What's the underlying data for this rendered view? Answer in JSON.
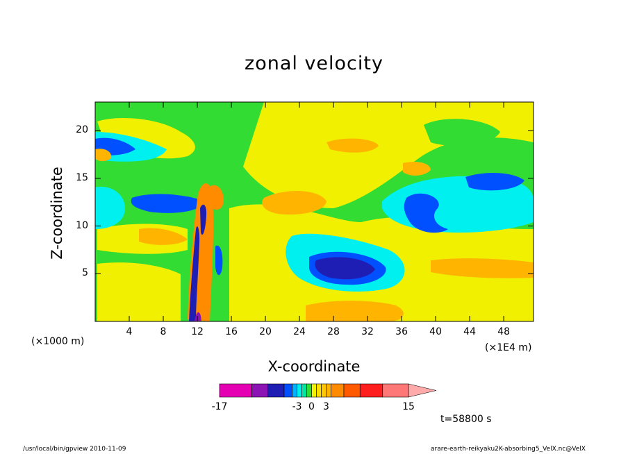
{
  "chart_data": {
    "type": "heatmap",
    "title": "zonal velocity",
    "xlabel": "X-coordinate",
    "ylabel": "Z-coordinate",
    "x_unit": "(×1E4 m)",
    "y_unit": "(×1000 m)",
    "xlim": [
      0,
      51.5
    ],
    "ylim": [
      0,
      23
    ],
    "x_ticks": [
      "4",
      "8",
      "12",
      "16",
      "20",
      "24",
      "28",
      "32",
      "36",
      "40",
      "44",
      "48"
    ],
    "y_ticks": [
      "5",
      "10",
      "15",
      "20"
    ],
    "colorbar": {
      "levels": [
        -17,
        -12,
        -9,
        -6,
        -4,
        -3,
        -2,
        -1,
        0,
        1,
        2,
        3,
        4,
        6,
        9,
        12,
        15
      ],
      "colors": [
        "#e600b4",
        "#8c14b4",
        "#1e1eb4",
        "#0050ff",
        "#00b4ff",
        "#00f0f0",
        "#00e6a0",
        "#32dc32",
        "#f0f000",
        "#ffdc00",
        "#ffc800",
        "#ffb400",
        "#ff8c00",
        "#ff5a00",
        "#ff1e1e",
        "#ff7878"
      ],
      "labels": [
        "-17",
        "-3",
        "0",
        "3",
        "15"
      ]
    },
    "colorbar_label_values": [
      -17,
      -3,
      0,
      3,
      15
    ],
    "time_label": "t=58800 s"
  },
  "footer": {
    "left": "/usr/local/bin/gpview  2010-11-09",
    "right": "arare-earth-reikyaku2K-absorbing5_VelX.nc@VelX"
  }
}
